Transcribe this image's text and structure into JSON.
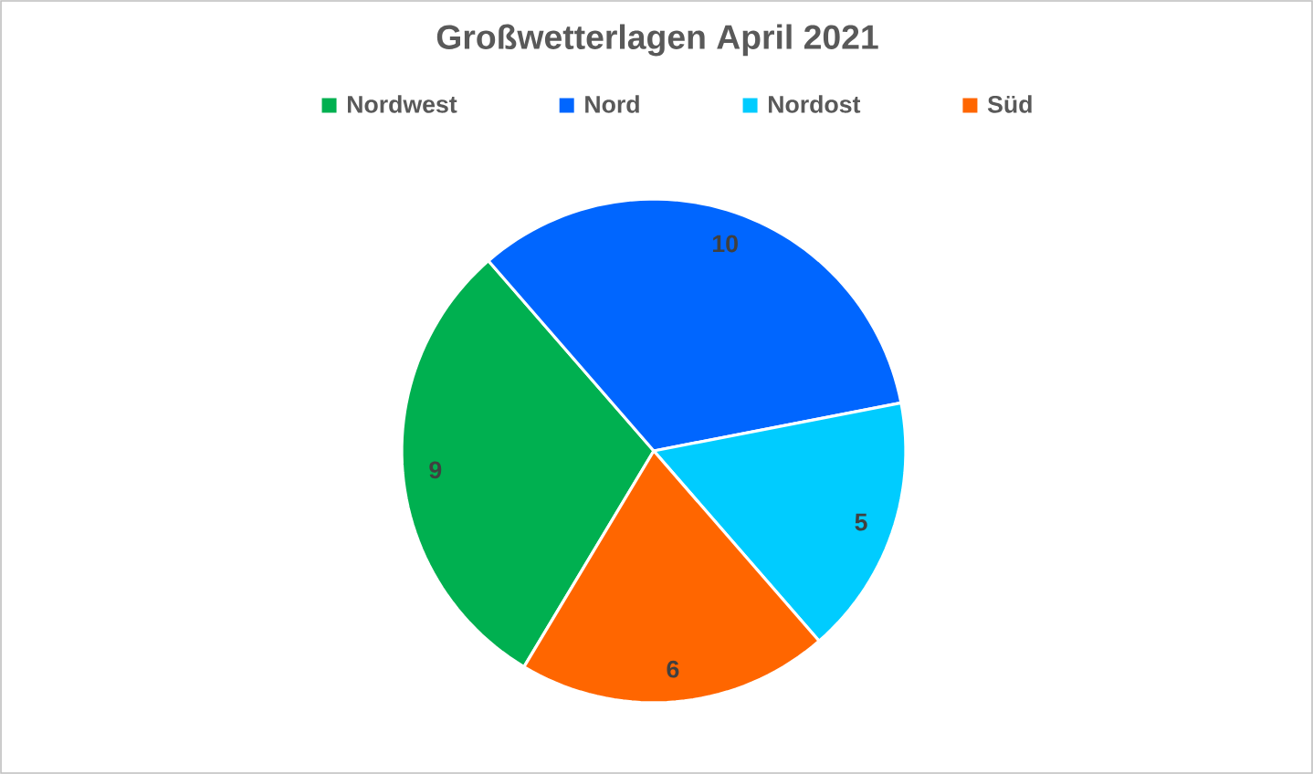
{
  "chart_data": {
    "type": "pie",
    "title": "Großwetterlagen April 2021",
    "categories": [
      "Nordwest",
      "Nord",
      "Nordost",
      "Süd"
    ],
    "values": [
      9,
      10,
      5,
      6
    ],
    "colors": [
      "#00b050",
      "#0066ff",
      "#00ccff",
      "#ff6600"
    ],
    "data_labels": true,
    "legend": "top"
  }
}
